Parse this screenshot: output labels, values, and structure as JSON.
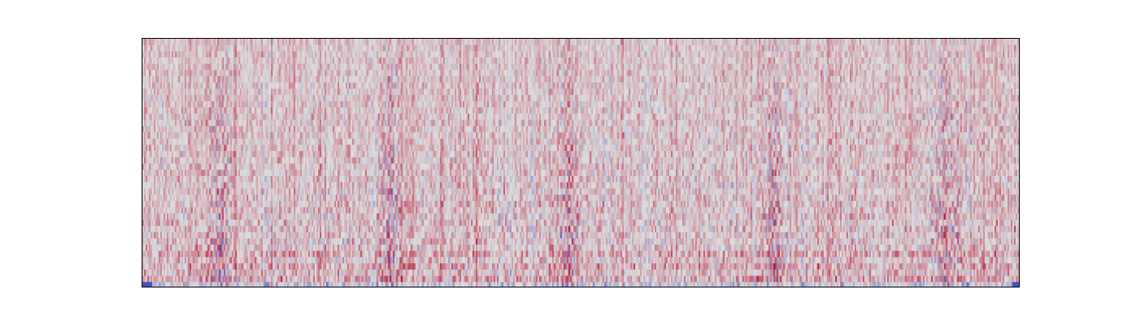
{
  "chart_data": {
    "type": "heatmap",
    "title": "",
    "xlabel": "",
    "ylabel": "",
    "colormap": "coolwarm",
    "colors": {
      "low": "#3b4cc0",
      "mid": "#dddddd",
      "high": "#b40426",
      "frame": "#000000",
      "background": "#ffffff"
    },
    "value_range": [
      -1,
      1
    ],
    "n_rows": 40,
    "n_cols": 540,
    "transient_columns": [
      95,
      305,
      525,
      780,
      990
    ],
    "axes_visible": false,
    "grid": false,
    "legend": "none"
  }
}
